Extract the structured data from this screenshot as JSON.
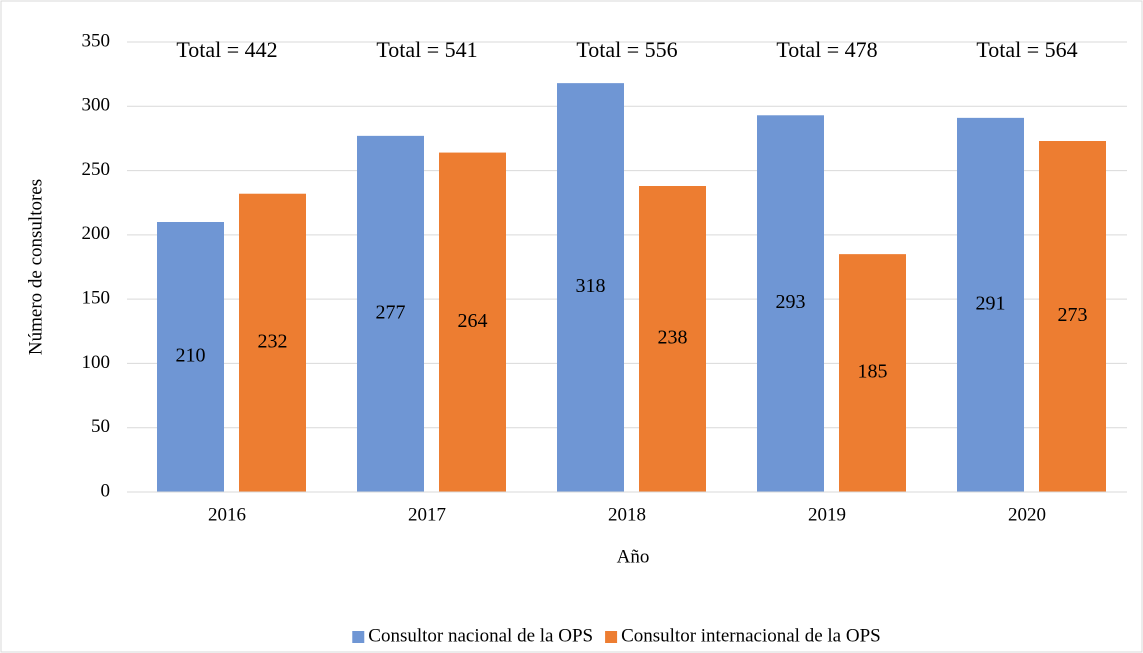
{
  "chart_data": {
    "type": "bar",
    "categories": [
      "2016",
      "2017",
      "2018",
      "2019",
      "2020"
    ],
    "series": [
      {
        "name": "Consultor nacional de la OPS",
        "color": "#6f96d4",
        "values": [
          210,
          277,
          318,
          293,
          291
        ]
      },
      {
        "name": "Consultor internacional de la OPS",
        "color": "#ed7d31",
        "values": [
          232,
          264,
          238,
          185,
          273
        ]
      }
    ],
    "annotations": [
      "Total = 442",
      "Total = 541",
      "Total = 556",
      "Total = 478",
      "Total = 564"
    ],
    "xlabel": "Año",
    "ylabel": "Número de consultores",
    "ylim": [
      0,
      350
    ],
    "yticks": [
      0,
      50,
      100,
      150,
      200,
      250,
      300,
      350
    ],
    "grid": true,
    "legend": "bottom"
  }
}
